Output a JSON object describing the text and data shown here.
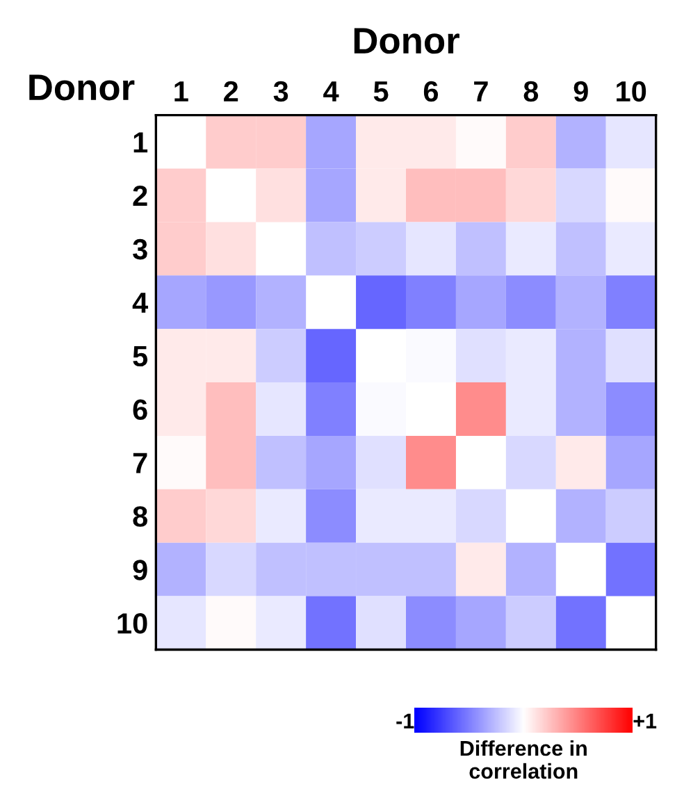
{
  "chart_data": {
    "type": "heatmap",
    "xlabel": "Donor",
    "ylabel": "Donor",
    "clabel": "Difference in\ncorrelation",
    "categories": [
      "1",
      "2",
      "3",
      "4",
      "5",
      "6",
      "7",
      "8",
      "9",
      "10"
    ],
    "y_categories": [
      "1",
      "2",
      "3",
      "4",
      "5",
      "6",
      "7",
      "8",
      "9",
      "10"
    ],
    "cells": [
      [
        null,
        0.2,
        0.2,
        -0.35,
        0.08,
        0.08,
        0.02,
        0.2,
        -0.3,
        -0.1
      ],
      [
        0.2,
        null,
        0.12,
        -0.35,
        0.08,
        0.25,
        0.25,
        0.15,
        -0.15,
        0.02
      ],
      [
        0.2,
        0.12,
        null,
        -0.25,
        -0.2,
        -0.1,
        -0.25,
        -0.08,
        -0.25,
        -0.08
      ],
      [
        -0.35,
        -0.4,
        -0.3,
        null,
        -0.6,
        -0.5,
        -0.35,
        -0.45,
        -0.3,
        -0.5
      ],
      [
        0.08,
        0.08,
        -0.2,
        -0.6,
        null,
        -0.02,
        -0.12,
        -0.08,
        -0.3,
        -0.12
      ],
      [
        0.08,
        0.25,
        -0.1,
        -0.5,
        -0.02,
        null,
        0.45,
        -0.08,
        -0.3,
        -0.45
      ],
      [
        0.02,
        0.25,
        -0.25,
        -0.35,
        -0.12,
        0.45,
        null,
        -0.15,
        0.08,
        -0.35
      ],
      [
        0.2,
        0.15,
        -0.08,
        -0.45,
        -0.08,
        -0.08,
        -0.15,
        null,
        -0.3,
        -0.2
      ],
      [
        -0.3,
        -0.15,
        -0.25,
        -0.25,
        -0.25,
        -0.25,
        0.08,
        -0.3,
        null,
        -0.55
      ],
      [
        -0.1,
        0.02,
        -0.08,
        -0.55,
        -0.12,
        -0.45,
        -0.35,
        -0.2,
        -0.55,
        null
      ]
    ],
    "clim": [
      -1,
      1
    ],
    "cticks": [
      {
        "value": -1,
        "label": "-1"
      },
      {
        "value": 1,
        "label": "+1"
      }
    ],
    "grid": false
  }
}
